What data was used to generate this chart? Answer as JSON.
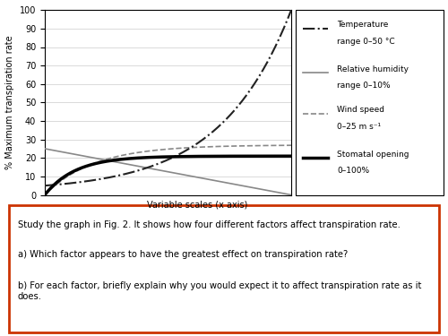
{
  "ylabel": "% Maximum transpiration rate",
  "ylim": [
    0,
    100
  ],
  "yticks": [
    0,
    10,
    20,
    30,
    40,
    50,
    60,
    70,
    80,
    90,
    100
  ],
  "xlabel_note": "Variable scales (x axis)",
  "background_color": "#ffffff",
  "text_color": "#000000",
  "legend_entries": [
    {
      "label": "Temperature\nrange 0–50 °C",
      "linestyle": "-.",
      "color": "#222222",
      "linewidth": 1.5
    },
    {
      "label": "Relative humidity\nrange 0–10%",
      "linestyle": "-",
      "color": "#888888",
      "linewidth": 1.2
    },
    {
      "label": "Wind speed\n0–25 m s⁻¹",
      "linestyle": "--",
      "color": "#888888",
      "linewidth": 1.2
    },
    {
      "label": "Stomatal opening\n0–100%",
      "linestyle": "-",
      "color": "#000000",
      "linewidth": 2.5
    }
  ],
  "text_box": "Study the graph in Fig. 2. It shows how four different factors affect transpiration rate.\na) Which factor appears to have the greatest effect on transpiration rate?\nb) For each factor, briefly explain why you would expect it to affect transpiration rate as it does.",
  "text_box_border_color": "#cc3300",
  "figsize": [
    5.0,
    3.75
  ],
  "dpi": 100
}
